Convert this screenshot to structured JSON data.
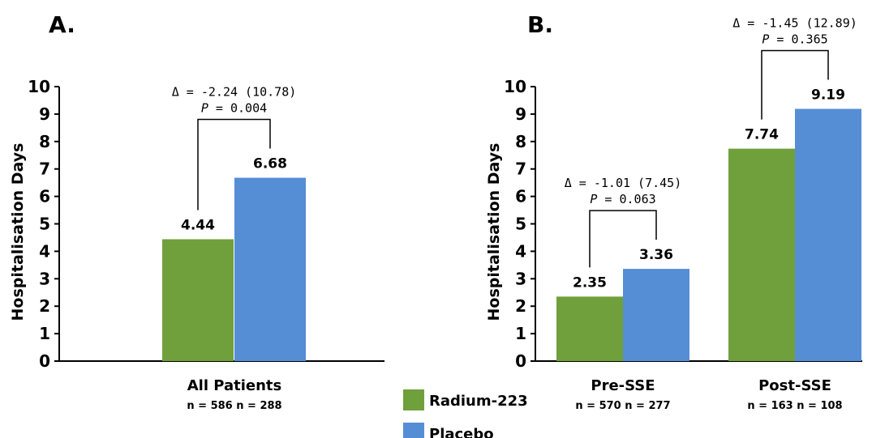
{
  "colors": {
    "radium": "#70a03c",
    "placebo": "#558ed5"
  },
  "legend": [
    {
      "label": "Radium-223",
      "color": "#70a03c"
    },
    {
      "label": "Placebo",
      "color": "#558ed5"
    }
  ],
  "chart_data": [
    {
      "type": "bar",
      "panel_label": "A.",
      "ylabel": "Hospitalisation Days",
      "ylim": [
        0,
        10
      ],
      "yticks": [
        "0",
        "1",
        "2",
        "3",
        "4",
        "5",
        "6",
        "7",
        "8",
        "9",
        "10"
      ],
      "categories": [
        "All Patients"
      ],
      "n_labels": [
        "n = 586   n = 288"
      ],
      "series": [
        {
          "name": "Radium-223",
          "values": [
            4.44
          ],
          "labels": [
            "4.44"
          ]
        },
        {
          "name": "Placebo",
          "values": [
            6.68
          ],
          "labels": [
            "6.68"
          ]
        }
      ],
      "annotations": [
        {
          "category": 0,
          "delta": "Δ = -2.24 (10.78)",
          "p_label": "P",
          "p_value": " = 0.004"
        }
      ]
    },
    {
      "type": "bar",
      "panel_label": "B.",
      "ylabel": "Hospitalisation Days",
      "ylim": [
        0,
        10
      ],
      "yticks": [
        "0",
        "1",
        "2",
        "3",
        "4",
        "5",
        "6",
        "7",
        "8",
        "9",
        "10"
      ],
      "categories": [
        "Pre-SSE",
        "Post-SSE"
      ],
      "n_labels": [
        "n = 570   n = 277",
        "n = 163   n = 108"
      ],
      "series": [
        {
          "name": "Radium-223",
          "values": [
            2.35,
            7.74
          ],
          "labels": [
            "2.35",
            "7.74"
          ]
        },
        {
          "name": "Placebo",
          "values": [
            3.36,
            9.19
          ],
          "labels": [
            "3.36",
            "9.19"
          ]
        }
      ],
      "annotations": [
        {
          "category": 0,
          "delta": "Δ = -1.01 (7.45)",
          "p_label": "P",
          "p_value": " = 0.063"
        },
        {
          "category": 1,
          "delta": "Δ = -1.45 (12.89)",
          "p_label": "P",
          "p_value": " = 0.365"
        }
      ]
    }
  ]
}
